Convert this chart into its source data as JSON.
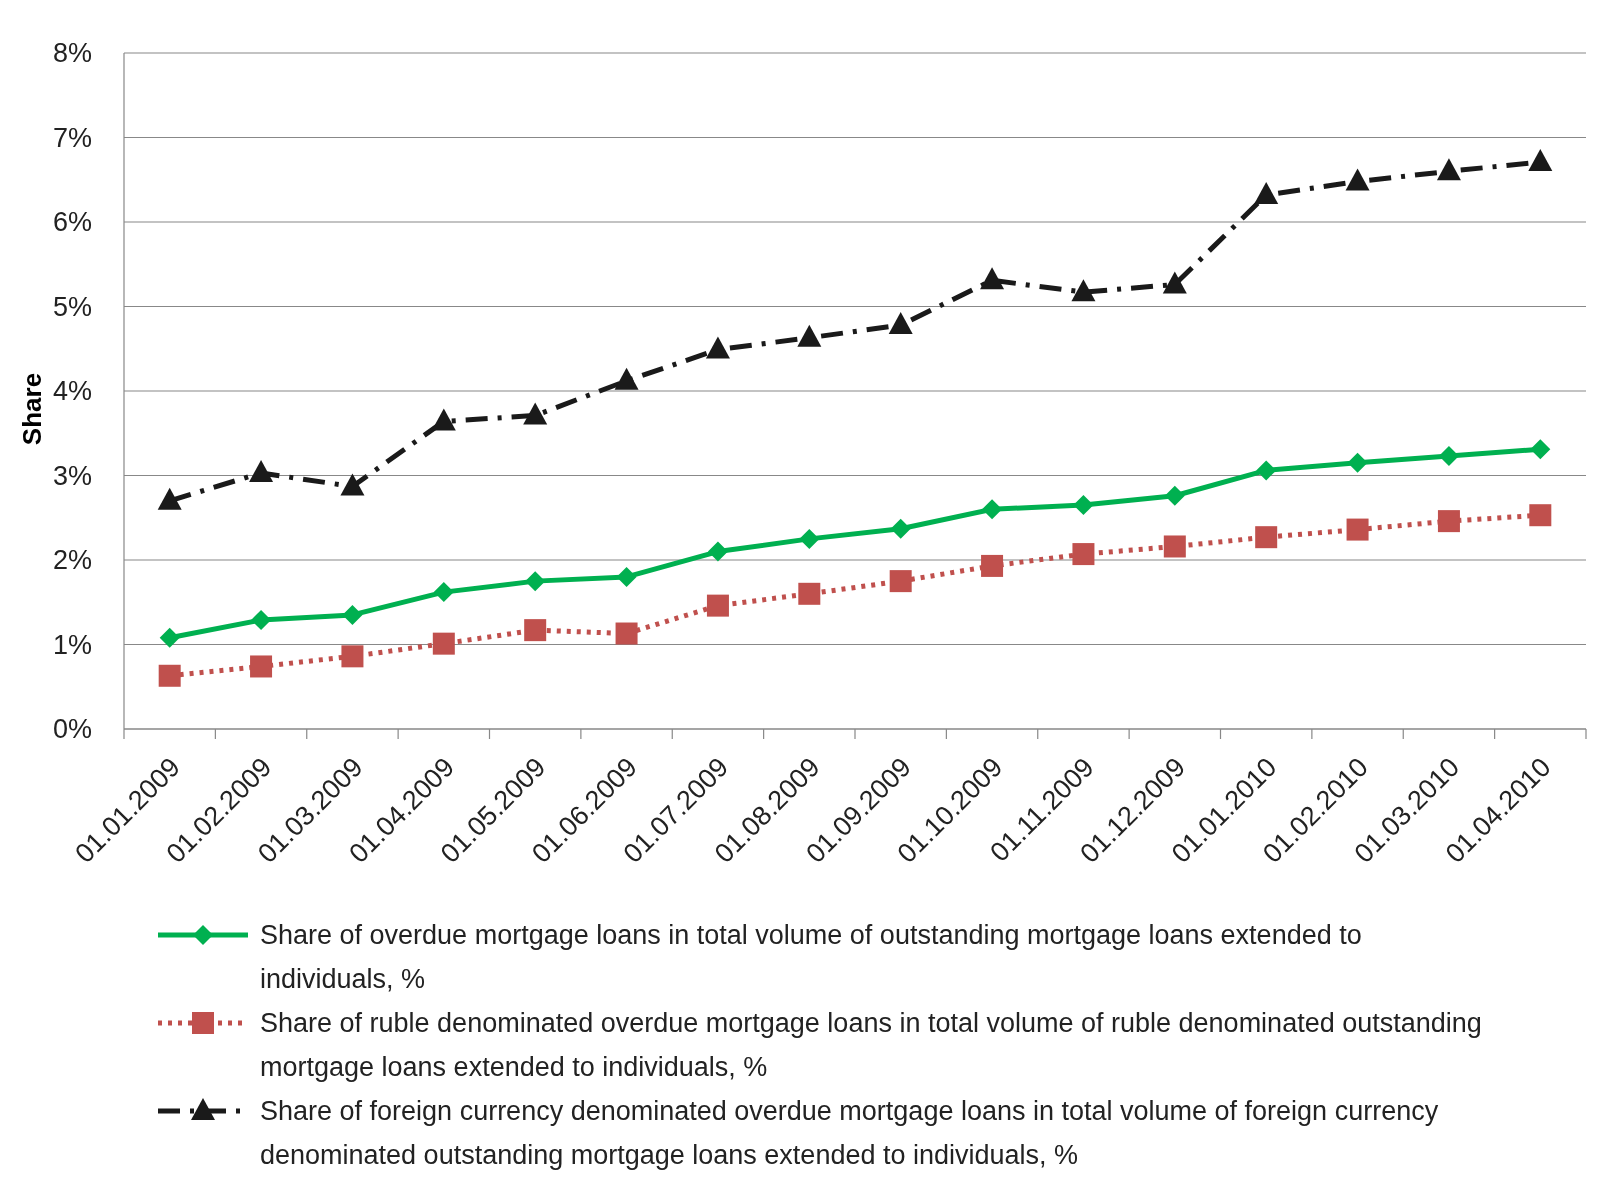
{
  "chart_data": {
    "type": "line",
    "ylabel": "Share",
    "categories": [
      "01.01.2009",
      "01.02.2009",
      "01.03.2009",
      "01.04.2009",
      "01.05.2009",
      "01.06.2009",
      "01.07.2009",
      "01.08.2009",
      "01.09.2009",
      "01.10.2009",
      "01.11.2009",
      "01.12.2009",
      "01.01.2010",
      "01.02.2010",
      "01.03.2010",
      "01.04.2010"
    ],
    "series": [
      {
        "name": "Share of overdue mortgage loans in total volume of outstanding mortgage loans extended to individuals, %",
        "color": "#00b050",
        "marker": "diamond",
        "line_style": "solid",
        "values": [
          1.08,
          1.29,
          1.35,
          1.62,
          1.75,
          1.8,
          2.1,
          2.25,
          2.37,
          2.6,
          2.65,
          2.76,
          3.06,
          3.15,
          3.23,
          3.31
        ]
      },
      {
        "name": "Share of ruble denominated overdue mortgage loans in total volume of ruble denominated outstanding mortgage loans extended to individuals, %",
        "color": "#c0504d",
        "marker": "square",
        "line_style": "dotted",
        "values": [
          0.63,
          0.74,
          0.86,
          1.01,
          1.17,
          1.13,
          1.46,
          1.6,
          1.75,
          1.93,
          2.07,
          2.16,
          2.27,
          2.36,
          2.46,
          2.53
        ]
      },
      {
        "name": "Share of foreign currency denominated overdue mortgage loans in total volume of foreign currency denominated outstanding mortgage loans extended to individuals, %",
        "color": "#1a1a1a",
        "marker": "triangle",
        "line_style": "dashdot",
        "values": [
          2.7,
          3.03,
          2.87,
          3.64,
          3.71,
          4.12,
          4.49,
          4.63,
          4.78,
          5.31,
          5.17,
          5.26,
          6.32,
          6.48,
          6.6,
          6.71
        ]
      }
    ],
    "ylim": [
      0,
      8
    ],
    "yticks": [
      {
        "value": 0,
        "label": "0%"
      },
      {
        "value": 1,
        "label": "1%"
      },
      {
        "value": 2,
        "label": "2%"
      },
      {
        "value": 3,
        "label": "3%"
      },
      {
        "value": 4,
        "label": "4%"
      },
      {
        "value": 5,
        "label": "5%"
      },
      {
        "value": 6,
        "label": "6%"
      },
      {
        "value": 7,
        "label": "7%"
      },
      {
        "value": 8,
        "label": "8%"
      }
    ],
    "grid": "y",
    "legend": "bottom"
  }
}
